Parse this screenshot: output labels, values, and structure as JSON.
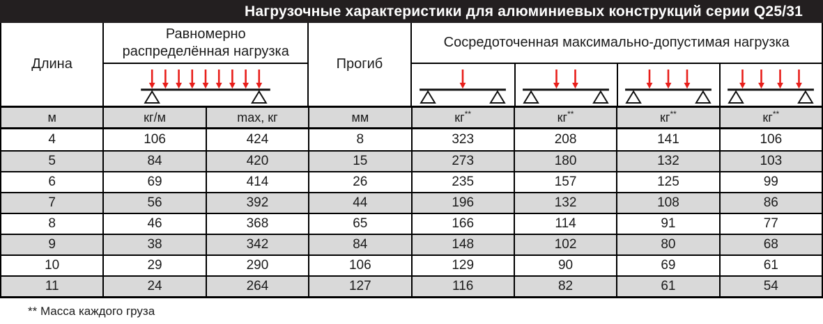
{
  "title": "Нагрузочные характеристики для алюминиевых конструкций серии Q25/31",
  "footnote": "** Масса каждого груза",
  "colors": {
    "accent_red": "#e81e1a",
    "title_bg": "#231f20",
    "row_alt": "#d9d9d9",
    "ink": "#1a1a1a"
  },
  "header": {
    "col_length": "Длина",
    "group_uniform": "Равномерно\nраспределённая нагрузка",
    "col_deflection": "Прогиб",
    "group_concentrated": "Сосредоточенная максимально-допустимая нагрузка"
  },
  "units": [
    {
      "text": "м",
      "sup": ""
    },
    {
      "text": "кг/м",
      "sup": ""
    },
    {
      "text": "max, кг",
      "sup": ""
    },
    {
      "text": "мм",
      "sup": ""
    },
    {
      "text": "кг",
      "sup": "**"
    },
    {
      "text": "кг",
      "sup": "**"
    },
    {
      "text": "кг",
      "sup": "**"
    },
    {
      "text": "кг",
      "sup": "**"
    }
  ],
  "diagrams": {
    "uniform_arrow_count": 9,
    "concentrated_arrow_counts": [
      1,
      2,
      3,
      4
    ]
  },
  "table": {
    "columns": [
      "Длина, м",
      "кг/м",
      "max, кг",
      "Прогиб, мм",
      "1 груз, кг",
      "2 груза, кг",
      "3 груза, кг",
      "4 груза, кг"
    ],
    "rows": [
      [
        4,
        106,
        424,
        8,
        323,
        208,
        141,
        106
      ],
      [
        5,
        84,
        420,
        15,
        273,
        180,
        132,
        103
      ],
      [
        6,
        69,
        414,
        26,
        235,
        157,
        125,
        99
      ],
      [
        7,
        56,
        392,
        44,
        196,
        132,
        108,
        86
      ],
      [
        8,
        46,
        368,
        65,
        166,
        114,
        91,
        77
      ],
      [
        9,
        38,
        342,
        84,
        148,
        102,
        80,
        68
      ],
      [
        10,
        29,
        290,
        106,
        129,
        90,
        69,
        61
      ],
      [
        11,
        24,
        264,
        127,
        116,
        82,
        61,
        54
      ]
    ]
  }
}
